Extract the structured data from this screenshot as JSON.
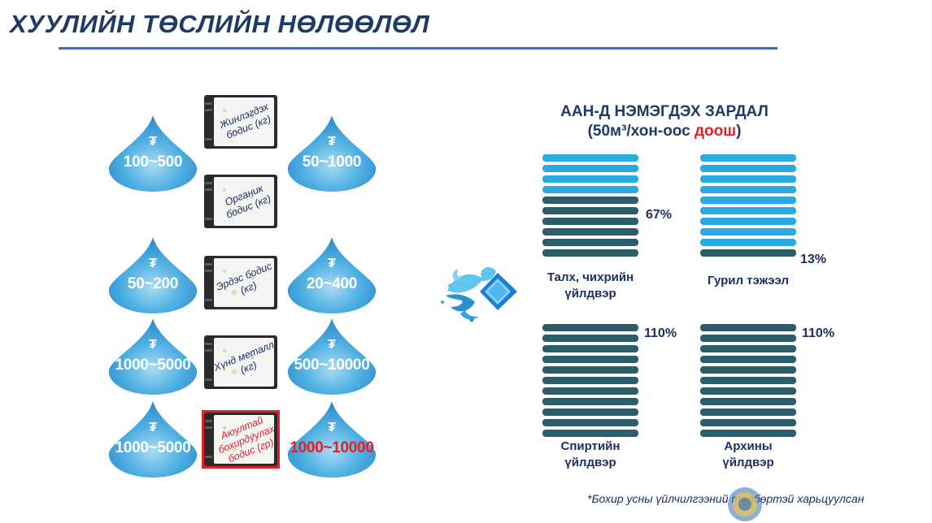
{
  "title": "ХУУЛИЙН ТӨСЛИЙН НӨЛӨӨЛӨЛ",
  "currency_symbol": "₮",
  "left_rows": [
    {
      "left_value": "100~500",
      "card_label": "Жинлэгдэх бодис (кг)",
      "right_value": "50~1000",
      "highlight": false
    },
    {
      "left_value": "",
      "card_label": "Органик бодис (кг)",
      "right_value": "",
      "highlight": false
    },
    {
      "left_value": "50~200",
      "card_label": "Эрдэс бодис (кг)",
      "right_value": "20~400",
      "highlight": false
    },
    {
      "left_value": "1000~5000",
      "card_label": "Хүнд металл (кг)",
      "right_value": "500~10000",
      "highlight": false
    },
    {
      "left_value": "1000~5000",
      "card_label": "Аюултай бохирдуулах бодис (гр)",
      "right_value": "1000~10000",
      "highlight": true
    }
  ],
  "right_panel": {
    "title_line1": "ААН-Д НЭМЭГДЭХ ЗАРДАЛ",
    "title_line2_pre": "(50м³/хон-оос ",
    "title_line2_red": "доош",
    "title_line2_post": ")",
    "colors": {
      "light": "#29aae1",
      "dark": "#2b5d6a",
      "red": "#e3202a"
    },
    "groups": [
      {
        "name_line1": "Талх, чихрийн",
        "name_line2": "үйлдвэр",
        "percent": "67%",
        "light_bars": 4,
        "dark_bars": 6
      },
      {
        "name_line1": "Гурил тэжээл",
        "name_line2": "",
        "percent": "13%",
        "light_bars": 9,
        "dark_bars": 1
      },
      {
        "name_line1": "Спиртийн",
        "name_line2": "үйлдвэр",
        "percent": "110%",
        "light_bars": 0,
        "dark_bars": 11
      },
      {
        "name_line1": "Архины",
        "name_line2": "үйлдвэр",
        "percent": "110%",
        "light_bars": 0,
        "dark_bars": 11
      }
    ]
  },
  "footnote": "*Бохир усны үйлчилгээний төлбөртэй харьцуулсан"
}
